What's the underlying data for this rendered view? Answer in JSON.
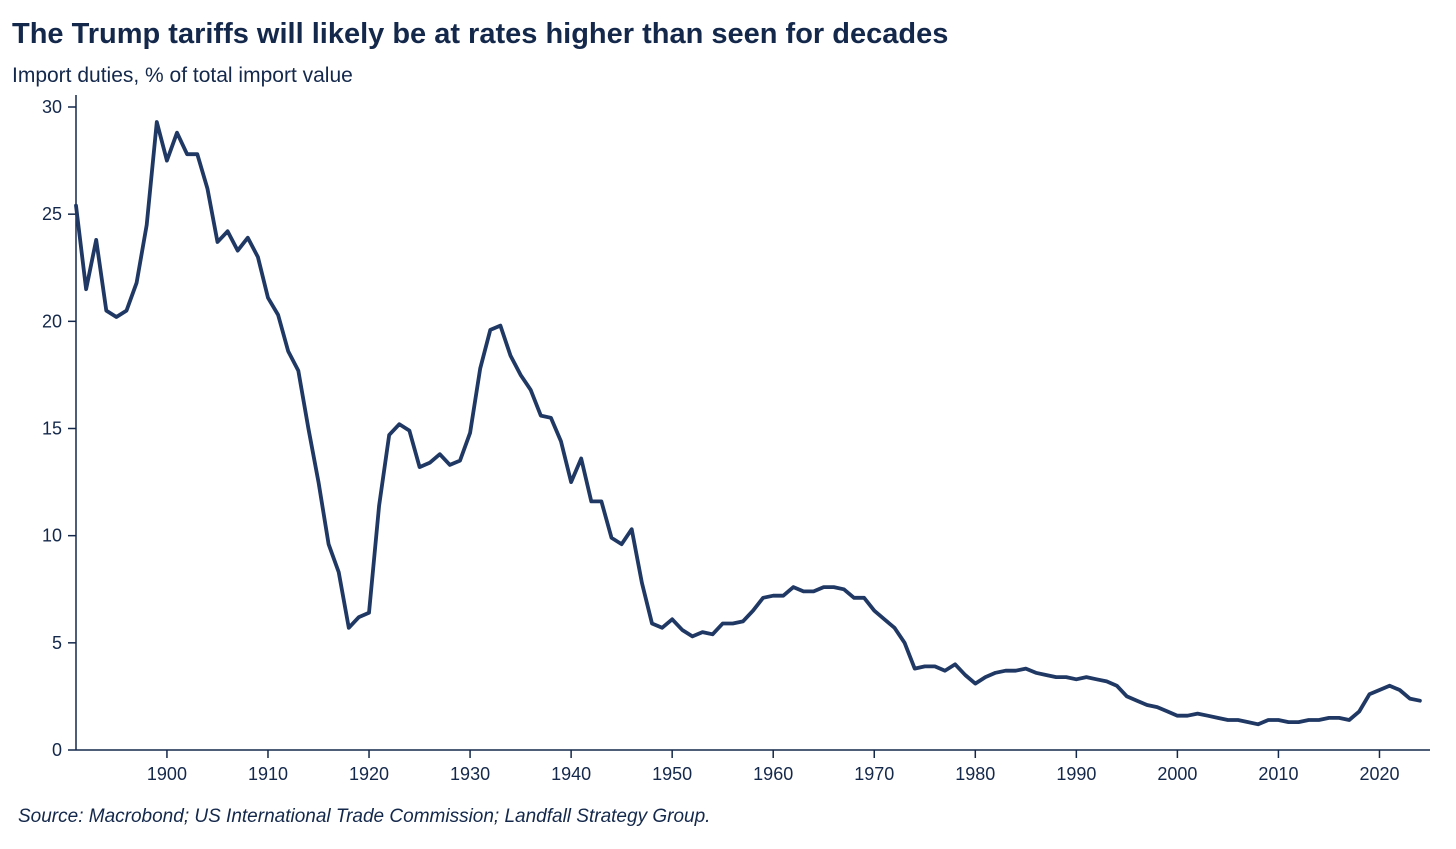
{
  "header": {
    "title": "The Trump tariffs will likely be at rates higher than seen for decades",
    "subtitle": "Import duties, % of total import value"
  },
  "footer": {
    "source": "Source: Macrobond; US International Trade Commission; Landfall Strategy Group."
  },
  "colors": {
    "line": "#1f3864",
    "axis": "#14284b",
    "text": "#14284b"
  },
  "chart_data": {
    "type": "line",
    "title": "The Trump tariffs will likely be at rates higher than seen for decades",
    "ylabel": "Import duties, % of total import value",
    "xlabel": "",
    "xlim": [
      1891,
      2025
    ],
    "ylim": [
      0,
      30
    ],
    "x_ticks": [
      1900,
      1910,
      1920,
      1930,
      1940,
      1950,
      1960,
      1970,
      1980,
      1990,
      2000,
      2010,
      2020
    ],
    "y_ticks": [
      0,
      5,
      10,
      15,
      20,
      25,
      30
    ],
    "grid": false,
    "legend": "none",
    "series": [
      {
        "x": [
          1891,
          1892,
          1893,
          1894,
          1895,
          1896,
          1897,
          1898,
          1899,
          1900,
          1901,
          1902,
          1903,
          1904,
          1905,
          1906,
          1907,
          1908,
          1909,
          1910,
          1911,
          1912,
          1913,
          1914,
          1915,
          1916,
          1917,
          1918,
          1919,
          1920,
          1921,
          1922,
          1923,
          1924,
          1925,
          1926,
          1927,
          1928,
          1929,
          1930,
          1931,
          1932,
          1933,
          1934,
          1935,
          1936,
          1937,
          1938,
          1939,
          1940,
          1941,
          1942,
          1943,
          1944,
          1945,
          1946,
          1947,
          1948,
          1949,
          1950,
          1951,
          1952,
          1953,
          1954,
          1955,
          1956,
          1957,
          1958,
          1959,
          1960,
          1961,
          1962,
          1963,
          1964,
          1965,
          1966,
          1967,
          1968,
          1969,
          1970,
          1971,
          1972,
          1973,
          1974,
          1975,
          1976,
          1977,
          1978,
          1979,
          1980,
          1981,
          1982,
          1983,
          1984,
          1985,
          1986,
          1987,
          1988,
          1989,
          1990,
          1991,
          1992,
          1993,
          1994,
          1995,
          1996,
          1997,
          1998,
          1999,
          2000,
          2001,
          2002,
          2003,
          2004,
          2005,
          2006,
          2007,
          2008,
          2009,
          2010,
          2011,
          2012,
          2013,
          2014,
          2015,
          2016,
          2017,
          2018,
          2019,
          2020,
          2021,
          2022,
          2023,
          2024
        ],
        "values": [
          25.4,
          21.5,
          23.8,
          20.5,
          20.2,
          20.5,
          21.8,
          24.5,
          29.3,
          27.5,
          28.8,
          27.8,
          27.8,
          26.2,
          23.7,
          24.2,
          23.3,
          23.9,
          23.0,
          21.1,
          20.3,
          18.6,
          17.7,
          15.0,
          12.5,
          9.6,
          8.3,
          5.7,
          6.2,
          6.4,
          11.4,
          14.7,
          15.2,
          14.9,
          13.2,
          13.4,
          13.8,
          13.3,
          13.5,
          14.8,
          17.8,
          19.6,
          19.8,
          18.4,
          17.5,
          16.8,
          15.6,
          15.5,
          14.4,
          12.5,
          13.6,
          11.6,
          11.6,
          9.9,
          9.6,
          10.3,
          7.8,
          5.9,
          5.7,
          6.1,
          5.6,
          5.3,
          5.5,
          5.4,
          5.9,
          5.9,
          6.0,
          6.5,
          7.1,
          7.2,
          7.2,
          7.6,
          7.4,
          7.4,
          7.6,
          7.6,
          7.5,
          7.1,
          7.1,
          6.5,
          6.1,
          5.7,
          5.0,
          3.8,
          3.9,
          3.9,
          3.7,
          4.0,
          3.5,
          3.1,
          3.4,
          3.6,
          3.7,
          3.7,
          3.8,
          3.6,
          3.5,
          3.4,
          3.4,
          3.3,
          3.4,
          3.3,
          3.2,
          3.0,
          2.5,
          2.3,
          2.1,
          2.0,
          1.8,
          1.6,
          1.6,
          1.7,
          1.6,
          1.5,
          1.4,
          1.4,
          1.3,
          1.2,
          1.4,
          1.4,
          1.3,
          1.3,
          1.4,
          1.4,
          1.5,
          1.5,
          1.4,
          1.8,
          2.6,
          2.8,
          3.0,
          2.8,
          2.4,
          2.3
        ]
      }
    ]
  }
}
